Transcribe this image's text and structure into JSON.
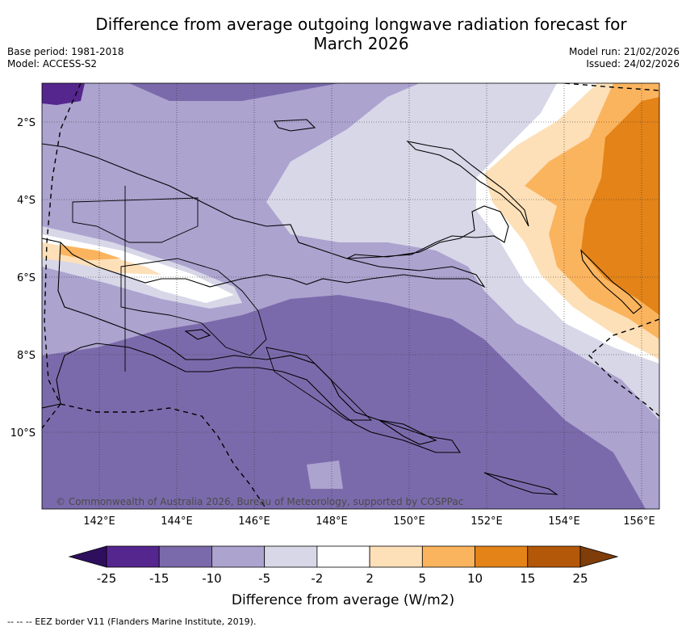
{
  "title_line1": "Difference from average outgoing longwave radiation forecast for",
  "title_line2": "March 2026",
  "base_period": "Base period: 1981-2018",
  "model": "Model: ACCESS-S2",
  "model_run": "Model run: 21/02/2026",
  "issued": "Issued: 24/02/2026",
  "copyright": "© Commonwealth of Australia 2026, Bureau of Meteorology, supported by COSPPac",
  "lat_labels": [
    "2°S",
    "4°S",
    "6°S",
    "8°S",
    "10°S"
  ],
  "lon_labels": [
    "142°E",
    "144°E",
    "146°E",
    "148°E",
    "150°E",
    "152°E",
    "154°E",
    "156°E"
  ],
  "legend": {
    "title": "Difference from average (W/m2)",
    "ticks": [
      "-25",
      "-15",
      "-10",
      "-5",
      "-2",
      "2",
      "5",
      "10",
      "15",
      "25"
    ],
    "colors": [
      "#2e0f5e",
      "#55268e",
      "#7b6aab",
      "#aca3cf",
      "#d7d7e8",
      "#ffffff",
      "#fde0b8",
      "#fbb45e",
      "#e38318",
      "#b35808",
      "#7f3d0a"
    ]
  },
  "footnote": "-- -- -- EEZ border V11 (Flanders Marine Institute, 2019)."
}
